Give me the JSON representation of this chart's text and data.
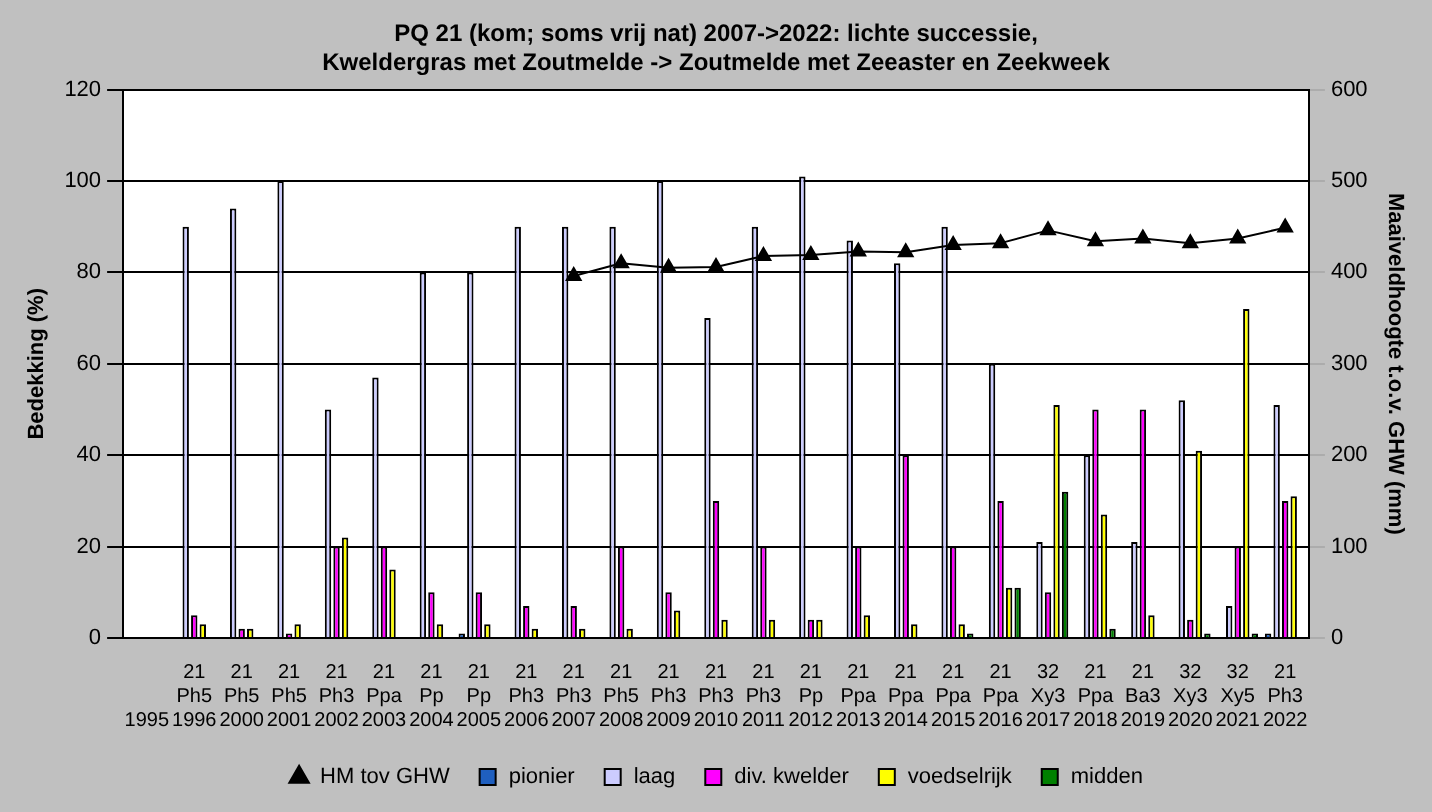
{
  "chart_data": {
    "type": "bar",
    "title": "PQ 21 (kom; soms vrij nat) 2007->2022: lichte successie,\nKweldergras met Zoutmelde -> Zoutmelde met Zeeaster en Zeekweek",
    "ylabel": "Bedekking (%)",
    "y2label": "Maaiveldhoogte t.o.v. GHW (mm)",
    "categories": [
      "\n\n1995",
      "21\nPh5\n1996",
      "21\nPh5\n2000",
      "21\nPh5\n2001",
      "21\nPh3\n2002",
      "21\nPpa\n2003",
      "21\nPp\n2004",
      "21\nPp\n2005",
      "21\nPh3\n2006",
      "21\nPh3\n2007",
      "21\nPh5\n2008",
      "21\nPh3\n2009",
      "21\nPh3\n2010",
      "21\nPh3\n2011",
      "21\nPp\n2012",
      "21\nPpa\n2013",
      "21\nPpa\n2014",
      "21\nPpa\n2015",
      "21\nPpa\n2016",
      "32\nXy3\n2017",
      "21\nPpa\n2018",
      "21\nBa3\n2019",
      "32\nXy3\n2020",
      "32\nXy5\n2021",
      "21\nPh3\n2022"
    ],
    "series": [
      {
        "name": "pionier",
        "color": "#1f5fbf",
        "values": [
          null,
          0,
          0,
          0,
          0,
          0,
          0,
          1,
          0,
          0,
          0,
          0,
          0,
          0,
          0,
          0,
          0,
          0,
          0,
          0,
          0,
          0,
          0,
          0,
          1
        ]
      },
      {
        "name": "laag",
        "color": "#ccccff",
        "values": [
          null,
          90,
          94,
          100,
          50,
          57,
          80,
          80,
          90,
          90,
          90,
          100,
          70,
          90,
          101,
          87,
          82,
          90,
          60,
          21,
          40,
          21,
          52,
          7,
          51
        ]
      },
      {
        "name": "div. kwelder",
        "color": "#ff00ff",
        "values": [
          null,
          5,
          2,
          1,
          20,
          20,
          10,
          10,
          7,
          7,
          20,
          10,
          30,
          20,
          4,
          20,
          40,
          20,
          30,
          10,
          50,
          50,
          4,
          20,
          30
        ]
      },
      {
        "name": "voedselrijk",
        "color": "#ffff00",
        "values": [
          null,
          3,
          2,
          3,
          22,
          15,
          3,
          3,
          2,
          2,
          2,
          6,
          4,
          4,
          4,
          5,
          3,
          3,
          11,
          51,
          27,
          5,
          41,
          72,
          31
        ]
      },
      {
        "name": "midden",
        "color": "#008000",
        "values": [
          null,
          0,
          0,
          0,
          0,
          0,
          0,
          0,
          0,
          0,
          0,
          0,
          0,
          0,
          0,
          0,
          0,
          1,
          11,
          32,
          2,
          0,
          1,
          1,
          0
        ]
      },
      {
        "name": "HM tov GHW",
        "type": "line",
        "axis": "y2",
        "color": "#000000",
        "marker": "triangle",
        "values": [
          null,
          null,
          null,
          null,
          null,
          null,
          null,
          null,
          null,
          396,
          410,
          405,
          406,
          418,
          419,
          423,
          422,
          430,
          432,
          446,
          434,
          437,
          432,
          437,
          449
        ]
      }
    ],
    "ylim": [
      0,
      120
    ],
    "yticks": [
      0,
      20,
      40,
      60,
      80,
      100,
      120
    ],
    "y2lim": [
      0,
      600
    ],
    "y2ticks": [
      0,
      100,
      200,
      300,
      400,
      500,
      600
    ],
    "grid": "y",
    "legend": "bottom"
  }
}
